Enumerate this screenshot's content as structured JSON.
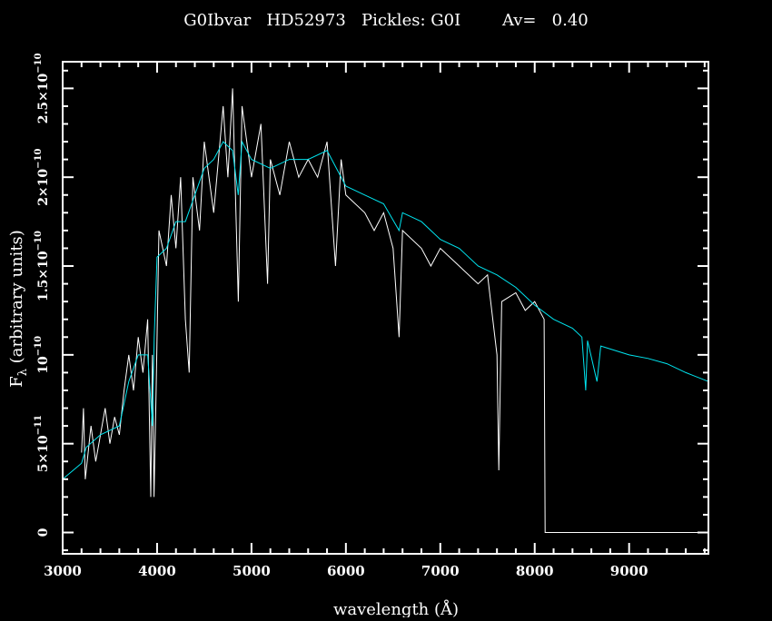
{
  "chart_data": {
    "type": "line",
    "title": "G0Ibvar   HD52973   Pickles: G0I        Av=   0.40",
    "xlabel": "wavelength (Å)",
    "ylabel_main": "F",
    "ylabel_sub": "λ",
    "ylabel_rest": " (arbitrary units)",
    "xlim": [
      3000,
      9840
    ],
    "ylim": [
      -1.2e-11,
      2.65e-10
    ],
    "grid": false,
    "background": "#000000",
    "x_ticks": [
      3000,
      4000,
      5000,
      6000,
      7000,
      8000,
      9000
    ],
    "x_tick_labels": [
      "3000",
      "4000",
      "5000",
      "6000",
      "7000",
      "8000",
      "9000"
    ],
    "y_ticks": [
      0,
      5e-11,
      1e-10,
      1.5e-10,
      2e-10,
      2.5e-10
    ],
    "y_tick_labels": [
      {
        "mant": "0",
        "exp": ""
      },
      {
        "mant": "5×10",
        "exp": "−11"
      },
      {
        "mant": "10",
        "exp": "−10"
      },
      {
        "mant": "1.5×10",
        "exp": "−10"
      },
      {
        "mant": "2×10",
        "exp": "−10"
      },
      {
        "mant": "2.5×10",
        "exp": "−10"
      }
    ],
    "series": [
      {
        "color": "#ffffff",
        "x": [
          3200,
          3220,
          3240,
          3300,
          3350,
          3400,
          3450,
          3500,
          3550,
          3600,
          3650,
          3700,
          3750,
          3800,
          3850,
          3900,
          3933,
          3950,
          3968,
          3990,
          4020,
          4100,
          4150,
          4200,
          4250,
          4300,
          4340,
          4380,
          4450,
          4500,
          4600,
          4700,
          4750,
          4800,
          4861,
          4900,
          5000,
          5100,
          5170,
          5200,
          5300,
          5400,
          5500,
          5600,
          5700,
          5800,
          5890,
          5950,
          6000,
          6200,
          6300,
          6400,
          6500,
          6563,
          6600,
          6800,
          6900,
          7000,
          7200,
          7400,
          7500,
          7600,
          7620,
          7650,
          7800,
          7900,
          8000,
          8100,
          8110,
          9840
        ],
        "y": [
          4.5e-11,
          7e-11,
          3e-11,
          6e-11,
          4e-11,
          5.5e-11,
          7e-11,
          5e-11,
          6.5e-11,
          5.5e-11,
          8e-11,
          1e-10,
          8e-11,
          1.1e-10,
          9e-11,
          1.2e-10,
          2e-11,
          1e-10,
          2e-11,
          8e-11,
          1.7e-10,
          1.5e-10,
          1.9e-10,
          1.6e-10,
          2e-10,
          1.2e-10,
          9e-11,
          2e-10,
          1.7e-10,
          2.2e-10,
          1.8e-10,
          2.4e-10,
          2e-10,
          2.5e-10,
          1.3e-10,
          2.4e-10,
          2e-10,
          2.3e-10,
          1.4e-10,
          2.1e-10,
          1.9e-10,
          2.2e-10,
          2e-10,
          2.1e-10,
          2e-10,
          2.2e-10,
          1.5e-10,
          2.1e-10,
          1.9e-10,
          1.8e-10,
          1.7e-10,
          1.8e-10,
          1.6e-10,
          1.1e-10,
          1.7e-10,
          1.6e-10,
          1.5e-10,
          1.6e-10,
          1.5e-10,
          1.4e-10,
          1.45e-10,
          1e-10,
          3.5e-11,
          1.3e-10,
          1.35e-10,
          1.25e-10,
          1.3e-10,
          1.2e-10,
          0,
          0
        ]
      },
      {
        "color": "#00e5f0",
        "x": [
          3000,
          3200,
          3250,
          3400,
          3600,
          3700,
          3800,
          3900,
          3950,
          3970,
          4000,
          4100,
          4200,
          4300,
          4400,
          4500,
          4600,
          4700,
          4800,
          4860,
          4900,
          5000,
          5200,
          5400,
          5600,
          5800,
          5900,
          6000,
          6200,
          6400,
          6563,
          6600,
          6800,
          7000,
          7200,
          7400,
          7600,
          7800,
          8000,
          8200,
          8400,
          8500,
          8540,
          8560,
          8660,
          8700,
          9000,
          9200,
          9400,
          9600,
          9840
        ],
        "y": [
          3e-11,
          3.9e-11,
          4.8e-11,
          5.5e-11,
          6e-11,
          8.5e-11,
          1e-10,
          1e-10,
          6e-11,
          1.1e-10,
          1.55e-10,
          1.6e-10,
          1.75e-10,
          1.75e-10,
          1.9e-10,
          2.05e-10,
          2.1e-10,
          2.2e-10,
          2.15e-10,
          1.9e-10,
          2.2e-10,
          2.1e-10,
          2.05e-10,
          2.1e-10,
          2.1e-10,
          2.15e-10,
          2.05e-10,
          1.95e-10,
          1.9e-10,
          1.85e-10,
          1.7e-10,
          1.8e-10,
          1.75e-10,
          1.65e-10,
          1.6e-10,
          1.5e-10,
          1.45e-10,
          1.38e-10,
          1.28e-10,
          1.2e-10,
          1.15e-10,
          1.1e-10,
          8e-11,
          1.08e-10,
          8.5e-11,
          1.05e-10,
          1e-10,
          9.8e-11,
          9.5e-11,
          9e-11,
          8.5e-11
        ]
      }
    ]
  }
}
